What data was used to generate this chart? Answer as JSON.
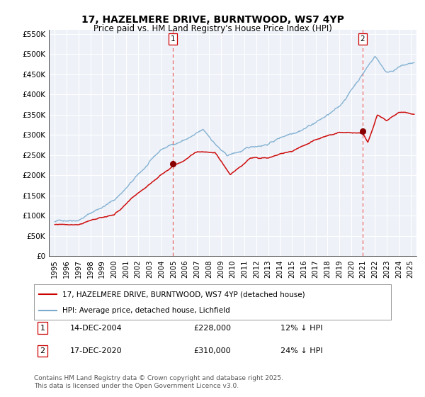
{
  "title": "17, HAZELMERE DRIVE, BURNTWOOD, WS7 4YP",
  "subtitle": "Price paid vs. HM Land Registry's House Price Index (HPI)",
  "legend_line1": "17, HAZELMERE DRIVE, BURNTWOOD, WS7 4YP (detached house)",
  "legend_line2": "HPI: Average price, detached house, Lichfield",
  "annotation1_date": "14-DEC-2004",
  "annotation1_price": "£228,000",
  "annotation1_hpi": "12% ↓ HPI",
  "annotation2_date": "17-DEC-2020",
  "annotation2_price": "£310,000",
  "annotation2_hpi": "24% ↓ HPI",
  "footer": "Contains HM Land Registry data © Crown copyright and database right 2025.\nThis data is licensed under the Open Government Licence v3.0.",
  "red_line_color": "#cc0000",
  "blue_line_color": "#7aabcf",
  "vline_color": "#dd4444",
  "marker_color": "#880000",
  "background_color": "#ffffff",
  "plot_bg_color": "#eef2f8",
  "grid_color": "#ffffff",
  "ylim": [
    0,
    560000
  ],
  "yticks": [
    0,
    50000,
    100000,
    150000,
    200000,
    250000,
    300000,
    350000,
    400000,
    450000,
    500000,
    550000
  ],
  "ytick_labels": [
    "£0",
    "£50K",
    "£100K",
    "£150K",
    "£200K",
    "£250K",
    "£300K",
    "£350K",
    "£400K",
    "£450K",
    "£500K",
    "£550K"
  ],
  "xmin": 1994.5,
  "xmax": 2025.5,
  "marker1_x": 2004.96,
  "marker1_y": 228000,
  "marker2_x": 2020.96,
  "marker2_y": 310000,
  "vline1_x": 2004.96,
  "vline2_x": 2020.96,
  "title_fontsize": 10,
  "subtitle_fontsize": 8.5,
  "tick_fontsize": 7.5,
  "legend_fontsize": 7.5,
  "table_fontsize": 8,
  "footer_fontsize": 6.5
}
